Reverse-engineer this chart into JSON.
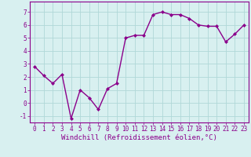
{
  "x": [
    0,
    1,
    2,
    3,
    4,
    5,
    6,
    7,
    8,
    9,
    10,
    11,
    12,
    13,
    14,
    15,
    16,
    17,
    18,
    19,
    20,
    21,
    22,
    23
  ],
  "y": [
    2.8,
    2.1,
    1.5,
    2.2,
    -1.2,
    1.0,
    0.4,
    -0.5,
    1.1,
    1.5,
    5.0,
    5.2,
    5.2,
    6.8,
    7.0,
    6.8,
    6.8,
    6.5,
    6.0,
    5.9,
    5.9,
    4.7,
    5.3,
    6.0
  ],
  "line_color": "#8B008B",
  "marker": "D",
  "marker_size": 2,
  "bg_color": "#d8f0f0",
  "grid_color": "#b0d8d8",
  "xlabel": "Windchill (Refroidissement éolien,°C)",
  "ylim": [
    -1.5,
    7.8
  ],
  "xlim": [
    -0.5,
    23.5
  ],
  "yticks": [
    -1,
    0,
    1,
    2,
    3,
    4,
    5,
    6,
    7
  ],
  "xticks": [
    0,
    1,
    2,
    3,
    4,
    5,
    6,
    7,
    8,
    9,
    10,
    11,
    12,
    13,
    14,
    15,
    16,
    17,
    18,
    19,
    20,
    21,
    22,
    23
  ],
  "tick_fontsize": 5.5,
  "xlabel_fontsize": 6.5,
  "line_width": 1.0
}
